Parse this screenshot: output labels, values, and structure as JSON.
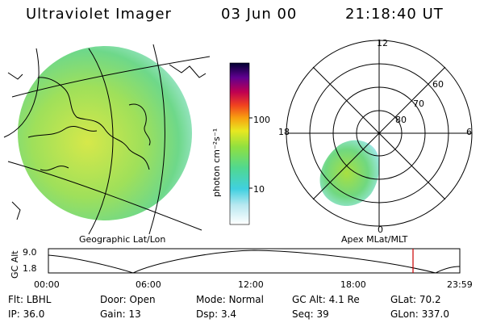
{
  "header": {
    "title": "Ultraviolet Imager",
    "date": "03 Jun 00",
    "time": "21:18:40 UT"
  },
  "colorbar": {
    "unit_label": "photon cm⁻²s⁻¹",
    "ticks": [
      "100",
      "10"
    ],
    "scale": "log"
  },
  "geo_panel": {
    "label": "Geographic Lat/Lon"
  },
  "polar_panel": {
    "label": "Apex MLat/MLT",
    "mlt_labels": {
      "top": "12",
      "right": "6",
      "bottom": "0",
      "left": "18"
    },
    "lat_labels": [
      "60",
      "70",
      "80"
    ]
  },
  "altitude_plot": {
    "axis_title": "GC Alt",
    "y_ticks": [
      "9.0",
      "1.8"
    ],
    "x_ticks": [
      "00:00",
      "06:00",
      "12:00",
      "18:00",
      "23:59"
    ],
    "marker_color": "#cc0000"
  },
  "info": {
    "row1": [
      {
        "label": "Flt:",
        "value": "LBHL"
      },
      {
        "label": "Door:",
        "value": "Open"
      },
      {
        "label": "Mode:",
        "value": "Normal"
      },
      {
        "label": "GC Alt:",
        "value": "4.1 Re"
      },
      {
        "label": "GLat:",
        "value": "70.2"
      }
    ],
    "row2": [
      {
        "label": "IP:",
        "value": "36.0"
      },
      {
        "label": "Gain:",
        "value": "13"
      },
      {
        "label": "Dsp:",
        "value": "3.4"
      },
      {
        "label": "Seq:",
        "value": "39"
      },
      {
        "label": "GLon:",
        "value": "337.0"
      }
    ]
  }
}
